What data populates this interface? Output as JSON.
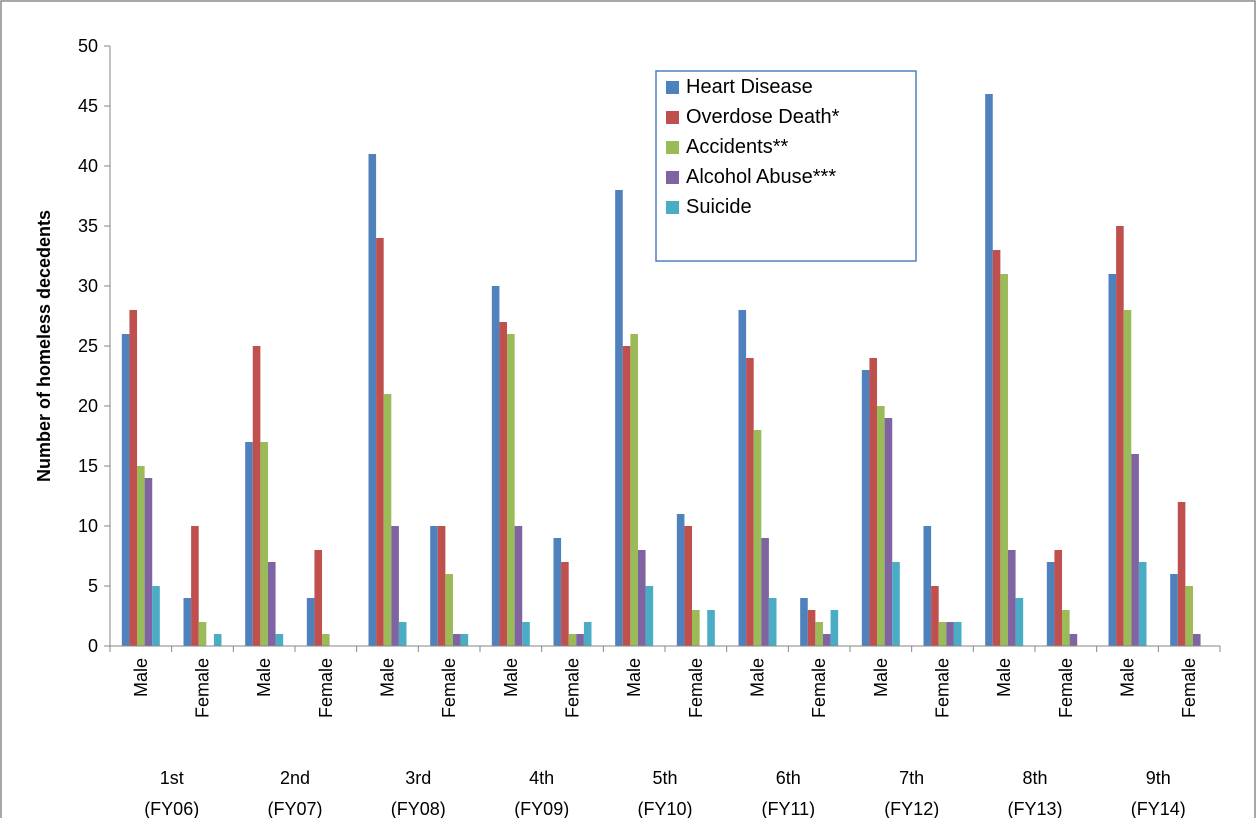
{
  "chart_data": {
    "type": "bar",
    "title": "",
    "ylabel": "Number of homeless decedents",
    "xlabel": "",
    "ylim": [
      0,
      50
    ],
    "yticks": [
      0,
      5,
      10,
      15,
      20,
      25,
      30,
      35,
      40,
      45,
      50
    ],
    "grid": false,
    "legend_position": "top-right",
    "groups": [
      {
        "line1": "1st",
        "line2": "(FY06)"
      },
      {
        "line1": "2nd",
        "line2": "(FY07)"
      },
      {
        "line1": "3rd",
        "line2": "(FY08)"
      },
      {
        "line1": "4th",
        "line2": "(FY09)"
      },
      {
        "line1": "5th",
        "line2": "(FY10)"
      },
      {
        "line1": "6th",
        "line2": "(FY11)"
      },
      {
        "line1": "7th",
        "line2": "(FY12)"
      },
      {
        "line1": "8th",
        "line2": "(FY13)"
      },
      {
        "line1": "9th",
        "line2": "(FY14)"
      }
    ],
    "categories": [
      "Male",
      "Female",
      "Male",
      "Female",
      "Male",
      "Female",
      "Male",
      "Female",
      "Male",
      "Female",
      "Male",
      "Female",
      "Male",
      "Female",
      "Male",
      "Female",
      "Male",
      "Female"
    ],
    "series": [
      {
        "name": "Heart Disease",
        "color": "#4F81BD",
        "values": [
          26,
          4,
          17,
          4,
          41,
          10,
          30,
          9,
          38,
          11,
          28,
          4,
          23,
          10,
          46,
          7,
          31,
          6
        ]
      },
      {
        "name": "Overdose Death*",
        "color": "#C0504D",
        "values": [
          28,
          10,
          25,
          8,
          34,
          10,
          27,
          7,
          25,
          10,
          24,
          3,
          24,
          5,
          33,
          8,
          35,
          12
        ]
      },
      {
        "name": "Accidents**",
        "color": "#9BBB59",
        "values": [
          15,
          2,
          17,
          1,
          21,
          6,
          26,
          1,
          26,
          3,
          18,
          2,
          20,
          2,
          31,
          3,
          28,
          5
        ]
      },
      {
        "name": "Alcohol Abuse***",
        "color": "#8064A2",
        "values": [
          14,
          0,
          7,
          0,
          10,
          1,
          10,
          1,
          8,
          0,
          9,
          1,
          19,
          2,
          8,
          1,
          16,
          1
        ]
      },
      {
        "name": "Suicide",
        "color": "#4BACC6",
        "values": [
          5,
          1,
          1,
          0,
          2,
          1,
          2,
          2,
          5,
          3,
          4,
          3,
          7,
          2,
          4,
          0,
          7,
          0
        ]
      }
    ]
  }
}
